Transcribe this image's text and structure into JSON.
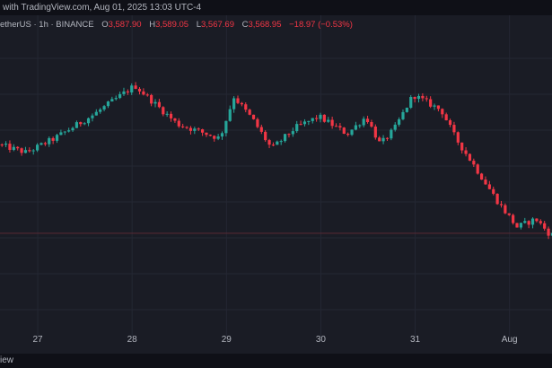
{
  "header": {
    "source_text": "with TradingView.com, Aug 01, 2025 13:03 UTC-4"
  },
  "legend": {
    "symbol": "etherUS · 1h · BINANCE",
    "open_label": "O",
    "open": "3,587.90",
    "high_label": "H",
    "high": "3,589.05",
    "low_label": "L",
    "low": "3,567.69",
    "close_label": "C",
    "close": "3,568.95",
    "change": "−18.97 (−0.53%)"
  },
  "footer": {
    "text": "iew"
  },
  "colors": {
    "background": "#1a1c25",
    "up": "#26a69a",
    "down": "#f23645",
    "grid": "#242733",
    "price_line": "#5a2a35"
  },
  "chart_data": {
    "type": "candlestick",
    "timeframe": "1h",
    "x_tick_labels": [
      "27",
      "28",
      "29",
      "30",
      "31",
      "Aug"
    ],
    "x_range_days": [
      26.6,
      32.45
    ],
    "close_path": [
      [
        26.6,
        3735
      ],
      [
        26.9,
        3722
      ],
      [
        27.2,
        3745
      ],
      [
        27.6,
        3782
      ],
      [
        28.05,
        3830
      ],
      [
        28.5,
        3768
      ],
      [
        28.95,
        3745
      ],
      [
        29.1,
        3812
      ],
      [
        29.3,
        3775
      ],
      [
        29.5,
        3728
      ],
      [
        29.75,
        3762
      ],
      [
        30.0,
        3780
      ],
      [
        30.3,
        3752
      ],
      [
        30.5,
        3780
      ],
      [
        30.65,
        3735
      ],
      [
        30.8,
        3760
      ],
      [
        31.0,
        3815
      ],
      [
        31.3,
        3790
      ],
      [
        31.45,
        3745
      ],
      [
        31.65,
        3700
      ],
      [
        31.9,
        3642
      ],
      [
        32.1,
        3602
      ],
      [
        32.3,
        3615
      ],
      [
        32.45,
        3590
      ]
    ],
    "horizontal_line": 3592,
    "visible_price_range": [
      3440,
      3910
    ],
    "grid": true
  }
}
